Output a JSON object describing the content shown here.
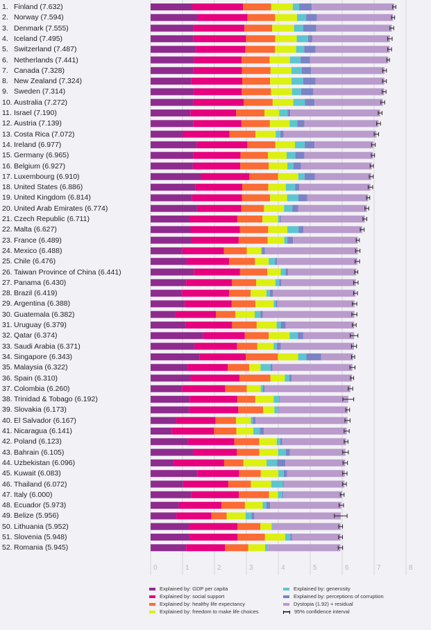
{
  "chart_data": {
    "type": "bar",
    "orientation": "horizontal",
    "stacked": true,
    "xlim": [
      0,
      8
    ],
    "xticks": [
      "0",
      "1",
      "2",
      "3",
      "4",
      "5",
      "6",
      "7",
      "8"
    ],
    "grid": true,
    "legend_position": "bottom",
    "series": [
      {
        "name": "Explained by: GDP per capita",
        "color": "#8e2c8e"
      },
      {
        "name": "Explained by: social support",
        "color": "#e6007e"
      },
      {
        "name": "Explained by: healthy life expectancy",
        "color": "#fb6b34"
      },
      {
        "name": "Explained by: freedom to make life choices",
        "color": "#dcf012"
      },
      {
        "name": "Explained by: generosity",
        "color": "#5ec5cf"
      },
      {
        "name": "Explained by: perceptions of corruption",
        "color": "#7b83c6"
      },
      {
        "name": "Dystopia (1.92) + residual",
        "color": "#b99bcc"
      }
    ],
    "ci_label": "95% confidence interval",
    "rows": [
      {
        "rank": "1.",
        "country": "Finland",
        "score": 7.632,
        "parts": [
          1.305,
          1.592,
          0.874,
          0.681,
          0.202,
          0.393
        ],
        "ci": 0.05
      },
      {
        "rank": "2.",
        "country": "Norway",
        "score": 7.594,
        "parts": [
          1.456,
          1.582,
          0.861,
          0.686,
          0.286,
          0.34
        ],
        "ci": 0.05
      },
      {
        "rank": "3.",
        "country": "Denmark",
        "score": 7.555,
        "parts": [
          1.351,
          1.59,
          0.868,
          0.683,
          0.284,
          0.408
        ],
        "ci": 0.06
      },
      {
        "rank": "4.",
        "country": "Iceland",
        "score": 7.495,
        "parts": [
          1.343,
          1.644,
          0.914,
          0.677,
          0.353,
          0.138
        ],
        "ci": 0.07
      },
      {
        "rank": "5.",
        "country": "Switzerland",
        "score": 7.487,
        "parts": [
          1.42,
          1.549,
          0.927,
          0.66,
          0.256,
          0.357
        ],
        "ci": 0.06
      },
      {
        "rank": "6.",
        "country": "Netherlands",
        "score": 7.441,
        "parts": [
          1.361,
          1.488,
          0.878,
          0.638,
          0.333,
          0.295
        ],
        "ci": 0.04
      },
      {
        "rank": "7.",
        "country": "Canada",
        "score": 7.328,
        "parts": [
          1.33,
          1.532,
          0.896,
          0.653,
          0.321,
          0.291
        ],
        "ci": 0.06
      },
      {
        "rank": "8.",
        "country": "New Zealand",
        "score": 7.324,
        "parts": [
          1.268,
          1.601,
          0.876,
          0.669,
          0.365,
          0.389
        ],
        "ci": 0.06
      },
      {
        "rank": "9.",
        "country": "Sweden",
        "score": 7.314,
        "parts": [
          1.355,
          1.501,
          0.913,
          0.659,
          0.285,
          0.383
        ],
        "ci": 0.06
      },
      {
        "rank": "10.",
        "country": "Australia",
        "score": 7.272,
        "parts": [
          1.34,
          1.573,
          0.91,
          0.647,
          0.361,
          0.302
        ],
        "ci": 0.06
      },
      {
        "rank": "11.",
        "country": "Israel",
        "score": 7.19,
        "parts": [
          1.244,
          1.433,
          0.888,
          0.464,
          0.262,
          0.082
        ],
        "ci": 0.06
      },
      {
        "rank": "12.",
        "country": "Austria",
        "score": 7.139,
        "parts": [
          1.341,
          1.504,
          0.891,
          0.617,
          0.242,
          0.224
        ],
        "ci": 0.06
      },
      {
        "rank": "13.",
        "country": "Costa Rica",
        "score": 7.072,
        "parts": [
          1.01,
          1.459,
          0.817,
          0.632,
          0.143,
          0.101
        ],
        "ci": 0.07
      },
      {
        "rank": "14.",
        "country": "Ireland",
        "score": 6.977,
        "parts": [
          1.448,
          1.583,
          0.876,
          0.614,
          0.307,
          0.306
        ],
        "ci": 0.06
      },
      {
        "rank": "15.",
        "country": "Germany",
        "score": 6.965,
        "parts": [
          1.34,
          1.474,
          0.861,
          0.586,
          0.273,
          0.28
        ],
        "ci": 0.05
      },
      {
        "rank": "16.",
        "country": "Belgium",
        "score": 6.927,
        "parts": [
          1.324,
          1.483,
          0.894,
          0.583,
          0.188,
          0.24
        ],
        "ci": 0.05
      },
      {
        "rank": "17.",
        "country": "Luxembourg",
        "score": 6.91,
        "parts": [
          1.576,
          1.52,
          0.896,
          0.632,
          0.196,
          0.321
        ],
        "ci": 0.06
      },
      {
        "rank": "18.",
        "country": "United States",
        "score": 6.886,
        "parts": [
          1.398,
          1.471,
          0.819,
          0.547,
          0.291,
          0.133
        ],
        "ci": 0.07
      },
      {
        "rank": "19.",
        "country": "United Kingdom",
        "score": 6.814,
        "parts": [
          1.301,
          1.559,
          0.883,
          0.533,
          0.354,
          0.272
        ],
        "ci": 0.05
      },
      {
        "rank": "20.",
        "country": "United Arab Emirates",
        "score": 6.774,
        "parts": [
          1.454,
          1.39,
          0.708,
          0.628,
          0.258,
          0.182
        ],
        "ci": 0.06
      },
      {
        "rank": "21.",
        "country": "Czech Republic",
        "score": 6.711,
        "parts": [
          1.206,
          1.51,
          0.787,
          0.49,
          0.051,
          0.038
        ],
        "ci": 0.06
      },
      {
        "rank": "22.",
        "country": "Malta",
        "score": 6.627,
        "parts": [
          1.25,
          1.55,
          0.883,
          0.6,
          0.35,
          0.15
        ],
        "ci": 0.06
      },
      {
        "rank": "23.",
        "country": "France",
        "score": 6.489,
        "parts": [
          1.293,
          1.466,
          0.908,
          0.52,
          0.098,
          0.176
        ],
        "ci": 0.05
      },
      {
        "rank": "24.",
        "country": "Mexico",
        "score": 6.488,
        "parts": [
          0.996,
          1.3,
          0.715,
          0.45,
          0.03,
          0.09
        ],
        "ci": 0.07
      },
      {
        "rank": "25.",
        "country": "Chile",
        "score": 6.476,
        "parts": [
          1.131,
          1.331,
          0.808,
          0.431,
          0.197,
          0.061
        ],
        "ci": 0.07
      },
      {
        "rank": "26.",
        "country": "Taiwan Province of China",
        "score": 6.441,
        "parts": [
          1.365,
          1.436,
          0.857,
          0.418,
          0.151,
          0.078
        ],
        "ci": 0.05
      },
      {
        "rank": "27.",
        "country": "Panama",
        "score": 6.43,
        "parts": [
          1.112,
          1.438,
          0.759,
          0.597,
          0.125,
          0.063
        ],
        "ci": 0.07
      },
      {
        "rank": "28.",
        "country": "Brazil",
        "score": 6.419,
        "parts": [
          0.986,
          1.474,
          0.675,
          0.493,
          0.11,
          0.088
        ],
        "ci": 0.06
      },
      {
        "rank": "29.",
        "country": "Argentina",
        "score": 6.388,
        "parts": [
          1.073,
          1.468,
          0.744,
          0.57,
          0.062,
          0.054
        ],
        "ci": 0.07
      },
      {
        "rank": "30.",
        "country": "Guatemala",
        "score": 6.382,
        "parts": [
          0.781,
          1.268,
          0.608,
          0.604,
          0.179,
          0.071
        ],
        "ci": 0.08
      },
      {
        "rank": "31.",
        "country": "Uruguay",
        "score": 6.379,
        "parts": [
          1.093,
          1.459,
          0.771,
          0.625,
          0.13,
          0.155
        ],
        "ci": 0.06
      },
      {
        "rank": "32.",
        "country": "Qatar",
        "score": 6.374,
        "parts": [
          1.649,
          1.303,
          0.748,
          0.654,
          0.256,
          0.171
        ],
        "ci": 0.12
      },
      {
        "rank": "33.",
        "country": "Saudi Arabia",
        "score": 6.371,
        "parts": [
          1.379,
          1.331,
          0.633,
          0.509,
          0.098,
          0.127
        ],
        "ci": 0.08
      },
      {
        "rank": "34.",
        "country": "Singapore",
        "score": 6.343,
        "parts": [
          1.529,
          1.451,
          1.008,
          0.631,
          0.261,
          0.457
        ],
        "ci": 0.05
      },
      {
        "rank": "35.",
        "country": "Malaysia",
        "score": 6.322,
        "parts": [
          1.161,
          1.258,
          0.669,
          0.356,
          0.311,
          0.059
        ],
        "ci": 0.08
      },
      {
        "rank": "36.",
        "country": "Spain",
        "score": 6.31,
        "parts": [
          1.251,
          1.538,
          0.965,
          0.449,
          0.142,
          0.074
        ],
        "ci": 0.05
      },
      {
        "rank": "37.",
        "country": "Colombia",
        "score": 6.26,
        "parts": [
          0.985,
          1.35,
          0.675,
          0.44,
          0.072,
          0.05
        ],
        "ci": 0.07
      },
      {
        "rank": "38.",
        "country": "Trinidad & Tobago",
        "score": 6.192,
        "parts": [
          1.223,
          1.492,
          0.564,
          0.575,
          0.171,
          0.019
        ],
        "ci": 0.17
      },
      {
        "rank": "39.",
        "country": "Slovakia",
        "score": 6.173,
        "parts": [
          1.21,
          1.537,
          0.776,
          0.354,
          0.118,
          0.014
        ],
        "ci": 0.06
      },
      {
        "rank": "40.",
        "country": "El Salvador",
        "score": 6.167,
        "parts": [
          0.806,
          1.231,
          0.639,
          0.461,
          0.065,
          0.082
        ],
        "ci": 0.08
      },
      {
        "rank": "41.",
        "country": "Nicaragua",
        "score": 6.141,
        "parts": [
          0.668,
          1.319,
          0.7,
          0.527,
          0.208,
          0.128
        ],
        "ci": 0.08
      },
      {
        "rank": "42.",
        "country": "Poland",
        "score": 6.123,
        "parts": [
          1.176,
          1.448,
          0.781,
          0.546,
          0.108,
          0.064
        ],
        "ci": 0.06
      },
      {
        "rank": "43.",
        "country": "Bahrain",
        "score": 6.105,
        "parts": [
          1.338,
          1.366,
          0.698,
          0.594,
          0.243,
          0.123
        ],
        "ci": 0.09
      },
      {
        "rank": "44.",
        "country": "Uzbekistan",
        "score": 6.096,
        "parts": [
          0.719,
          1.584,
          0.605,
          0.724,
          0.328,
          0.259
        ],
        "ci": 0.07
      },
      {
        "rank": "45.",
        "country": "Kuwait",
        "score": 6.083,
        "parts": [
          1.474,
          1.301,
          0.675,
          0.554,
          0.167,
          0.106
        ],
        "ci": 0.07
      },
      {
        "rank": "46.",
        "country": "Thailand",
        "score": 6.072,
        "parts": [
          1.016,
          1.417,
          0.707,
          0.637,
          0.364,
          0.029
        ],
        "ci": 0.06
      },
      {
        "rank": "47.",
        "country": "Italy",
        "score": 6.0,
        "parts": [
          1.264,
          1.501,
          0.946,
          0.281,
          0.137,
          0.028
        ],
        "ci": 0.06
      },
      {
        "rank": "48.",
        "country": "Ecuador",
        "score": 5.973,
        "parts": [
          0.889,
          1.33,
          0.736,
          0.556,
          0.114,
          0.12
        ],
        "ci": 0.07
      },
      {
        "rank": "49.",
        "country": "Belize",
        "score": 5.956,
        "parts": [
          0.807,
          1.101,
          0.474,
          0.593,
          0.183,
          0.089
        ],
        "ci": 0.2
      },
      {
        "rank": "50.",
        "country": "Lithuania",
        "score": 5.952,
        "parts": [
          1.197,
          1.527,
          0.716,
          0.35,
          0.026,
          0.006
        ],
        "ci": 0.06
      },
      {
        "rank": "51.",
        "country": "Slovenia",
        "score": 5.948,
        "parts": [
          1.219,
          1.506,
          0.856,
          0.633,
          0.16,
          0.051
        ],
        "ci": 0.06
      },
      {
        "rank": "52.",
        "country": "Romania",
        "score": 5.945,
        "parts": [
          1.116,
          1.219,
          0.726,
          0.528,
          0.088,
          0.001
        ],
        "ci": 0.07
      }
    ]
  }
}
